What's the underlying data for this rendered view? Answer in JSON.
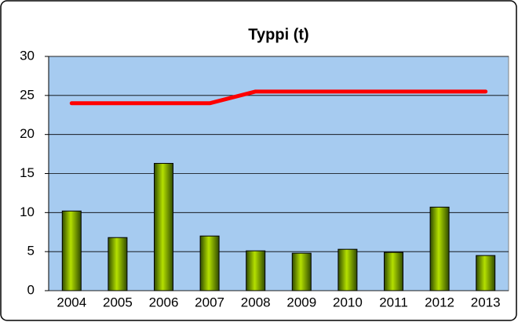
{
  "chart_data": {
    "type": "bar",
    "title": "Typpi (t)",
    "categories": [
      "2004",
      "2005",
      "2006",
      "2007",
      "2008",
      "2009",
      "2010",
      "2011",
      "2012",
      "2013"
    ],
    "series": [
      {
        "type": "bar",
        "color": "#99cc00",
        "values": [
          10.2,
          6.8,
          16.3,
          7.0,
          5.1,
          4.8,
          5.3,
          4.9,
          10.7,
          4.5
        ]
      },
      {
        "type": "line",
        "color": "#ff0000",
        "values": [
          24,
          24,
          24,
          24,
          25.5,
          25.5,
          25.5,
          25.5,
          25.5,
          25.5
        ]
      }
    ],
    "ylim": [
      0,
      30
    ],
    "yticks": [
      0,
      5,
      10,
      15,
      20,
      25,
      30
    ],
    "grid": true
  }
}
